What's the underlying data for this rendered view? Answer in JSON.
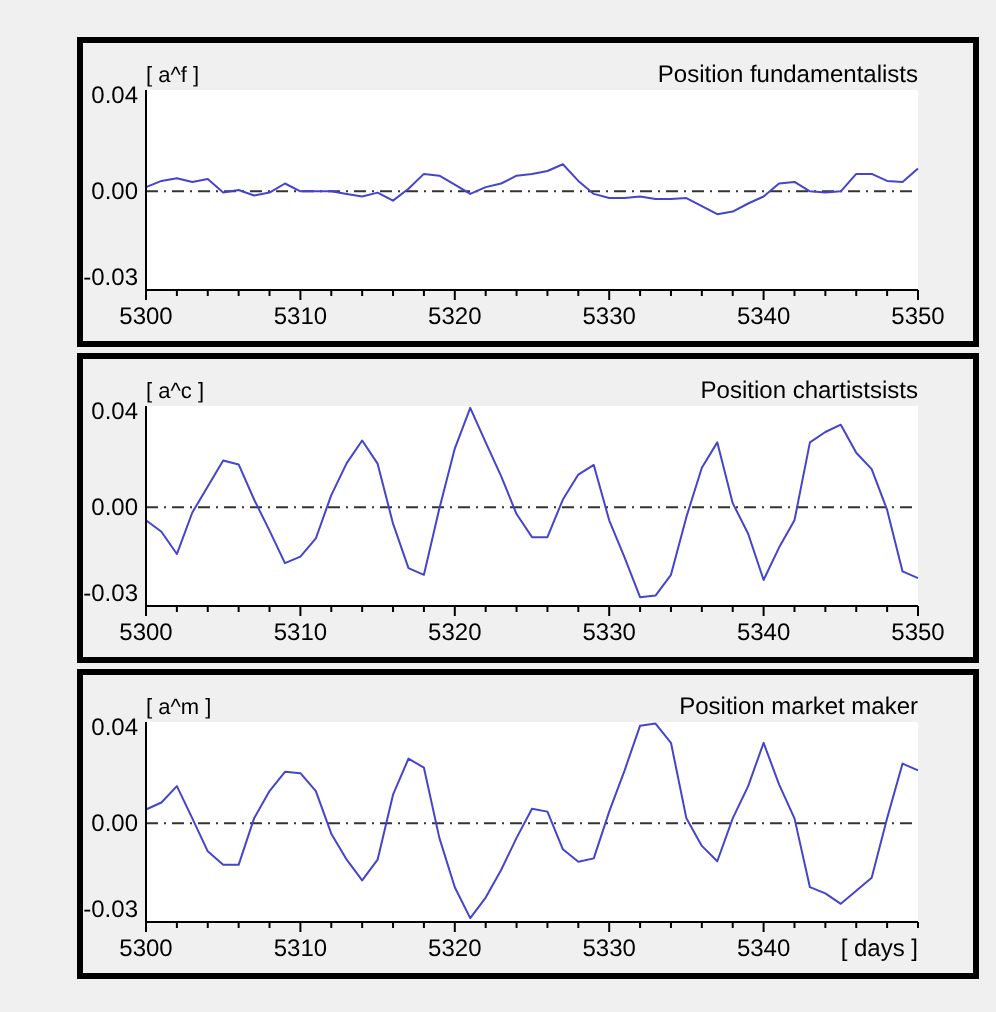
{
  "chart_data": [
    {
      "type": "line",
      "title": "Position fundamentalists",
      "ylabel": "[ a^f ]",
      "x": [
        5300,
        5301,
        5302,
        5303,
        5304,
        5305,
        5306,
        5307,
        5308,
        5309,
        5310,
        5311,
        5312,
        5313,
        5314,
        5315,
        5316,
        5317,
        5318,
        5319,
        5320,
        5321,
        5322,
        5323,
        5324,
        5325,
        5326,
        5327,
        5328,
        5329,
        5330,
        5331,
        5332,
        5333,
        5334,
        5335,
        5336,
        5337,
        5338,
        5339,
        5340,
        5341,
        5342,
        5343,
        5344,
        5345,
        5346,
        5347,
        5348,
        5349,
        5350
      ],
      "series": [
        {
          "color": "#4444cc",
          "values": [
            0.0016,
            0.004,
            0.005,
            0.0036,
            0.0047,
            -0.0005,
            0.0005,
            -0.0016,
            -0.0005,
            0.003,
            0,
            0,
            0,
            -0.001,
            -0.002,
            -0.0005,
            -0.0036,
            0.001,
            0.0067,
            0.006,
            0.0026,
            -0.001,
            0.0016,
            0.003,
            0.006,
            0.0067,
            0.0078,
            0.0104,
            0.004,
            -0.001,
            -0.0026,
            -0.0026,
            -0.002,
            -0.003,
            -0.003,
            -0.0026,
            -0.0057,
            -0.0088,
            -0.0078,
            -0.0047,
            -0.002,
            0.003,
            0.0036,
            0,
            -0.0005,
            0,
            0.0067,
            0.0067,
            0.004,
            0.0036,
            0.0088
          ]
        }
      ],
      "xlim": [
        5300,
        5350
      ],
      "xticks": [
        5300,
        {
          "value": 5302,
          "label": null
        },
        {
          "value": 5304,
          "label": null
        },
        {
          "value": 5306,
          "label": null
        },
        {
          "value": 5308,
          "label": null
        },
        5310,
        {
          "value": 5312,
          "label": null
        },
        {
          "value": 5314,
          "label": null
        },
        {
          "value": 5316,
          "label": null
        },
        {
          "value": 5318,
          "label": null
        },
        5320,
        {
          "value": 5322,
          "label": null
        },
        {
          "value": 5324,
          "label": null
        },
        {
          "value": 5326,
          "label": null
        },
        {
          "value": 5328,
          "label": null
        },
        5330,
        {
          "value": 5332,
          "label": null
        },
        {
          "value": 5334,
          "label": null
        },
        {
          "value": 5336,
          "label": null
        },
        {
          "value": 5338,
          "label": null
        },
        5340,
        {
          "value": 5342,
          "label": null
        },
        {
          "value": 5344,
          "label": null
        },
        {
          "value": 5346,
          "label": null
        },
        {
          "value": 5348,
          "label": null
        },
        5350
      ],
      "ylim": [
        -0.038,
        0.039
      ],
      "yticks": [
        {
          "value": 0.037,
          "label": "0.04"
        },
        {
          "value": 0,
          "label": "0.00"
        },
        {
          "value": -0.033,
          "label": "-0.03"
        }
      ],
      "ref_lines": [
        {
          "axis": "y",
          "value": 0,
          "color": "#333333",
          "line_style": "dashed"
        }
      ],
      "grid": false
    },
    {
      "type": "line",
      "title": "Position chartistsists",
      "ylabel": "[ a^c ]",
      "x": [
        5300,
        5301,
        5302,
        5303,
        5304,
        5305,
        5306,
        5307,
        5308,
        5309,
        5310,
        5311,
        5312,
        5313,
        5314,
        5315,
        5316,
        5317,
        5318,
        5319,
        5320,
        5321,
        5322,
        5323,
        5324,
        5325,
        5326,
        5327,
        5328,
        5329,
        5330,
        5331,
        5332,
        5333,
        5334,
        5335,
        5336,
        5337,
        5338,
        5339,
        5340,
        5341,
        5342,
        5343,
        5344,
        5345,
        5346,
        5347,
        5348,
        5349,
        5350
      ],
      "series": [
        {
          "color": "#4444cc",
          "values": [
            -0.005,
            -0.0094,
            -0.018,
            -0.002,
            0.008,
            0.018,
            0.0165,
            0.003,
            -0.009,
            -0.0215,
            -0.019,
            -0.012,
            0.0047,
            0.017,
            0.0257,
            0.0168,
            -0.0063,
            -0.0234,
            -0.026,
            -0.0005,
            0.0226,
            0.0383,
            0.025,
            0.012,
            -0.0026,
            -0.0115,
            -0.0115,
            0.003,
            0.0126,
            0.0163,
            -0.005,
            -0.0194,
            -0.0346,
            -0.034,
            -0.026,
            -0.0037,
            0.0152,
            0.025,
            0.0016,
            -0.0102,
            -0.028,
            -0.0155,
            -0.005,
            0.025,
            0.029,
            0.0318,
            0.021,
            0.0147,
            -0.001,
            -0.0247,
            -0.0273
          ]
        }
      ],
      "xlim": [
        5300,
        5350
      ],
      "xticks": [
        5300,
        {
          "value": 5302,
          "label": null
        },
        {
          "value": 5304,
          "label": null
        },
        {
          "value": 5306,
          "label": null
        },
        {
          "value": 5308,
          "label": null
        },
        5310,
        {
          "value": 5312,
          "label": null
        },
        {
          "value": 5314,
          "label": null
        },
        {
          "value": 5316,
          "label": null
        },
        {
          "value": 5318,
          "label": null
        },
        5320,
        {
          "value": 5322,
          "label": null
        },
        {
          "value": 5324,
          "label": null
        },
        {
          "value": 5326,
          "label": null
        },
        {
          "value": 5328,
          "label": null
        },
        5330,
        {
          "value": 5332,
          "label": null
        },
        {
          "value": 5334,
          "label": null
        },
        {
          "value": 5336,
          "label": null
        },
        {
          "value": 5338,
          "label": null
        },
        5340,
        {
          "value": 5342,
          "label": null
        },
        {
          "value": 5344,
          "label": null
        },
        {
          "value": 5346,
          "label": null
        },
        {
          "value": 5348,
          "label": null
        },
        5350
      ],
      "ylim": [
        -0.038,
        0.039
      ],
      "yticks": [
        {
          "value": 0.037,
          "label": "0.04"
        },
        {
          "value": 0,
          "label": "0.00"
        },
        {
          "value": -0.033,
          "label": "-0.03"
        }
      ],
      "ref_lines": [
        {
          "axis": "y",
          "value": 0,
          "color": "#333333",
          "line_style": "dashed"
        }
      ],
      "grid": false
    },
    {
      "type": "line",
      "title": "Position market maker",
      "ylabel": "[ a^m ]",
      "xlabel": "[ days ]",
      "x": [
        5300,
        5301,
        5302,
        5303,
        5304,
        5305,
        5306,
        5307,
        5308,
        5309,
        5310,
        5311,
        5312,
        5313,
        5314,
        5315,
        5316,
        5317,
        5318,
        5319,
        5320,
        5321,
        5322,
        5323,
        5324,
        5325,
        5326,
        5327,
        5328,
        5329,
        5330,
        5331,
        5332,
        5333,
        5334,
        5335,
        5336,
        5337,
        5338,
        5339,
        5340,
        5341,
        5342,
        5343,
        5344,
        5345,
        5346,
        5347,
        5348,
        5349,
        5350
      ],
      "series": [
        {
          "color": "#4444cc",
          "values": [
            0.0053,
            0.008,
            0.0143,
            0.0019,
            -0.0108,
            -0.016,
            -0.016,
            0.0019,
            0.0124,
            0.0198,
            0.0193,
            0.0124,
            -0.004,
            -0.014,
            -0.022,
            -0.014,
            0.011,
            0.0249,
            0.0214,
            -0.0056,
            -0.0246,
            -0.0365,
            -0.0286,
            -0.018,
            -0.0056,
            0.0056,
            0.0045,
            -0.01,
            -0.0148,
            -0.0135,
            0.0045,
            0.0204,
            0.0376,
            0.0384,
            0.031,
            0.0019,
            -0.0087,
            -0.0146,
            0.0019,
            0.0143,
            0.031,
            0.015,
            0.0019,
            -0.0246,
            -0.027,
            -0.031,
            -0.026,
            -0.021,
            0.0019,
            0.023,
            0.0204
          ]
        }
      ],
      "xlim": [
        5300,
        5350
      ],
      "xticks": [
        5300,
        {
          "value": 5302,
          "label": null
        },
        {
          "value": 5304,
          "label": null
        },
        {
          "value": 5306,
          "label": null
        },
        {
          "value": 5308,
          "label": null
        },
        5310,
        {
          "value": 5312,
          "label": null
        },
        {
          "value": 5314,
          "label": null
        },
        {
          "value": 5316,
          "label": null
        },
        {
          "value": 5318,
          "label": null
        },
        5320,
        {
          "value": 5322,
          "label": null
        },
        {
          "value": 5324,
          "label": null
        },
        {
          "value": 5326,
          "label": null
        },
        {
          "value": 5328,
          "label": null
        },
        5330,
        {
          "value": 5332,
          "label": null
        },
        {
          "value": 5334,
          "label": null
        },
        {
          "value": 5336,
          "label": null
        },
        {
          "value": 5338,
          "label": null
        },
        5340,
        {
          "value": 5342,
          "label": null
        },
        {
          "value": 5344,
          "label": null
        },
        {
          "value": 5346,
          "label": null
        },
        {
          "value": 5348,
          "label": null
        },
        {
          "value": 5350,
          "label": null
        }
      ],
      "ylim": [
        -0.038,
        0.039
      ],
      "yticks": [
        {
          "value": 0.037,
          "label": "0.04"
        },
        {
          "value": 0,
          "label": "0.00"
        },
        {
          "value": -0.033,
          "label": "-0.03"
        }
      ],
      "ref_lines": [
        {
          "axis": "y",
          "value": 0,
          "color": "#333333",
          "line_style": "dashed"
        }
      ],
      "grid": false
    }
  ]
}
